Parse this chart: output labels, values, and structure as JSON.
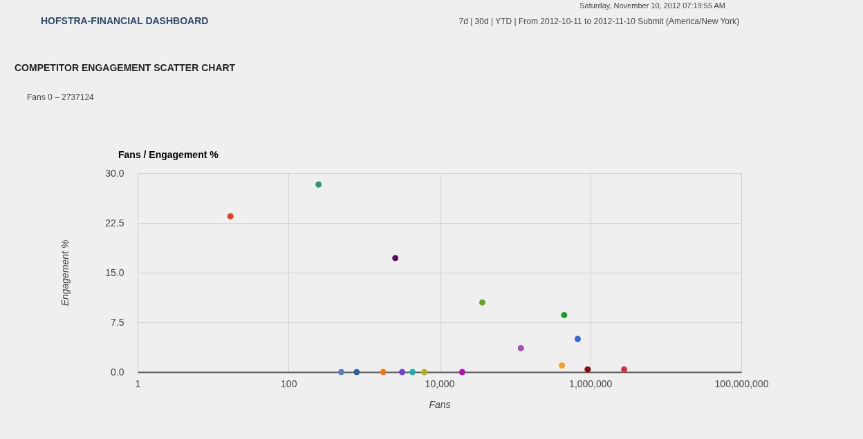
{
  "chart_data": {
    "type": "scatter",
    "title": "Fans / Engagement %",
    "subtitle": "COMPETITOR ENGAGEMENT SCATTER CHART",
    "xlabel": "Fans",
    "ylabel": "Engagement %",
    "x": [
      17,
      250,
      2600,
      500,
      800,
      1800,
      3200,
      4400,
      6300,
      20000,
      37000,
      120000,
      420000,
      450000,
      680000,
      920000,
      2800000
    ],
    "values": [
      23.5,
      28.3,
      17.2,
      0,
      0,
      0,
      0,
      0,
      0,
      0,
      10.5,
      3.6,
      1.0,
      8.6,
      5.0,
      0.4,
      0.4
    ],
    "colors": [
      "#e8401c",
      "#2a9a6a",
      "#5e0a5e",
      "#5b7fb5",
      "#2a5fa0",
      "#f07a12",
      "#7040d8",
      "#20b0a0",
      "#b0b020",
      "#b010b0",
      "#5aaa1a",
      "#a050b0",
      "#f8a020",
      "#1a9a2a",
      "#2f6bd8",
      "#8a0a0a",
      "#d83040"
    ],
    "log": "x",
    "xlim": [
      1,
      100000000
    ],
    "xticks": [
      1,
      100,
      {
        "value": 10000,
        "label": "10,000"
      },
      {
        "value": 1000000,
        "label": "1,000,000"
      },
      {
        "value": 100000000,
        "label": "100,000,000"
      }
    ],
    "ylim": [
      0,
      30
    ],
    "yticks": [
      {
        "value": 0,
        "label": "0.0"
      },
      {
        "value": 7.5,
        "label": "7.5"
      },
      {
        "value": 15,
        "label": "15.0"
      },
      {
        "value": 22.5,
        "label": "22.5"
      },
      {
        "value": 30,
        "label": "30.0"
      }
    ],
    "grid": true,
    "marker": "circle",
    "annotations": [
      "HOFSTRA-FINANCIAL DASHBOARD",
      "Saturday, November 10, 2012     07:19:55 AM",
      "7d | 30d | YTD | From 2012-10-11 to 2012-11-10  Submit  (America/New York)",
      "Fans  0 – 2737124"
    ]
  }
}
